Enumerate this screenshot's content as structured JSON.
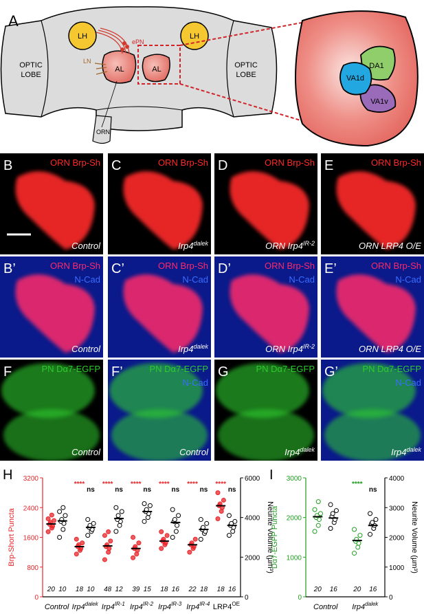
{
  "diagram": {
    "letter": "A",
    "lh": [
      "LH",
      "LH"
    ],
    "optic_lobe": [
      [
        "OPTIC",
        "LOBE"
      ],
      [
        "OPTIC",
        "LOBE"
      ]
    ],
    "al": [
      "AL",
      "AL"
    ],
    "epn": "ePN",
    "ln": "LN",
    "orn": "ORN",
    "glomeruli": [
      "DA1",
      "VA1d",
      "VA1v"
    ]
  },
  "microscopy": [
    {
      "letter": "B",
      "stain": "ORN Brp-Sh",
      "stain_color": "#ff2a2a",
      "genotype": "Control"
    },
    {
      "letter": "C",
      "stain": "ORN Brp-Sh",
      "stain_color": "#ff2a2a",
      "genotype": "Irp4",
      "genotype_sup": "dalek"
    },
    {
      "letter": "D",
      "stain": "ORN Brp-Sh",
      "stain_color": "#ff2a2a",
      "genotype": "ORN Irp4",
      "genotype_sup": "IR-2"
    },
    {
      "letter": "E",
      "stain": "ORN Brp-Sh",
      "stain_color": "#ff2a2a",
      "genotype": "ORN LRP4 O/E"
    },
    {
      "letter": "B’",
      "stain": "ORN Brp-Sh",
      "stain_color": "#ff2a6a",
      "stain2": "N-Cad",
      "stain2_color": "#3a6cff",
      "genotype": "Control"
    },
    {
      "letter": "C’",
      "stain": "ORN Brp-Sh",
      "stain_color": "#ff2a6a",
      "stain2": "N-Cad",
      "stain2_color": "#3a6cff",
      "genotype": "Irp4",
      "genotype_sup": "dalek"
    },
    {
      "letter": "D’",
      "stain": "ORN Brp-Sh",
      "stain_color": "#ff2a6a",
      "stain2": "N-Cad",
      "stain2_color": "#3a6cff",
      "genotype": "ORN Irp4",
      "genotype_sup": "IR-2"
    },
    {
      "letter": "E’",
      "stain": "ORN Brp-Sh",
      "stain_color": "#ff2a6a",
      "stain2": "N-Cad",
      "stain2_color": "#3a6cff",
      "genotype": "ORN LRP4 O/E"
    },
    {
      "letter": "F",
      "stain": "PN Dα7-EGFP",
      "stain_color": "#2ecc2e",
      "genotype": "Control"
    },
    {
      "letter": "F’",
      "stain": "PN Dα7-EGFP",
      "stain_color": "#2ecc2e",
      "stain2": "N-Cad",
      "stain2_color": "#3a6cff",
      "genotype": "Control"
    },
    {
      "letter": "G",
      "stain": "PN Dα7-EGFP",
      "stain_color": "#2ecc2e",
      "genotype": "Irp4",
      "genotype_sup": "dalek"
    },
    {
      "letter": "G’",
      "stain": "PN Dα7-EGFP",
      "stain_color": "#2ecc2e",
      "stain2": "N-Cad",
      "stain2_color": "#3a6cff",
      "genotype": "Irp4",
      "genotype_sup": "dalek"
    }
  ],
  "chart_data": [
    {
      "type": "dot",
      "panel": "H",
      "ylabel": "Brp-Short Puncta",
      "y2label": "Neurite Volume (µm³)",
      "categories": [
        "Control",
        "Irp4",
        "Irp4",
        "Irp4",
        "Irp4",
        "Irp4",
        "LRP4"
      ],
      "category_superscripts": [
        null,
        "dalek",
        "IR-1",
        "IR-2",
        "IR-3",
        "IR-4",
        "OE"
      ],
      "category_italic": [
        true,
        true,
        true,
        true,
        true,
        true,
        false
      ],
      "ylim": [
        0,
        3200
      ],
      "yticks": [
        0,
        800,
        1600,
        2400,
        3200
      ],
      "y2lim": [
        0,
        6000
      ],
      "y2ticks": [
        0,
        2000,
        4000,
        6000
      ],
      "series": [
        {
          "name": "Brp-Short Puncta",
          "color": "#e8262a",
          "filled": true,
          "means": [
            1960,
            1350,
            1370,
            1300,
            1500,
            1400,
            2450
          ],
          "points": [
            [
              1750,
              1850,
              1900,
              1950,
              2000,
              2050,
              2100,
              2200
            ],
            [
              1150,
              1250,
              1300,
              1350,
              1400,
              1450,
              1550
            ],
            [
              1000,
              1200,
              1300,
              1350,
              1400,
              1500,
              1650,
              1750
            ],
            [
              1050,
              1150,
              1250,
              1300,
              1350,
              1450,
              1600
            ],
            [
              1300,
              1400,
              1450,
              1500,
              1550,
              1650,
              1750
            ],
            [
              1200,
              1300,
              1350,
              1400,
              1450,
              1550
            ],
            [
              2100,
              2300,
              2400,
              2450,
              2500,
              2600,
              2800
            ]
          ],
          "n_labels": [
            20,
            18,
            48,
            39,
            18,
            22,
            18
          ],
          "sig_labels": [
            null,
            "****",
            "****",
            "****",
            "****",
            "****",
            "****"
          ]
        },
        {
          "name": "Neurite Volume",
          "color": "#000000",
          "filled": false,
          "axis": "y2",
          "means": [
            3830,
            3500,
            3950,
            4300,
            3750,
            3400,
            3600
          ],
          "points": [
            [
              3000,
              3400,
              3700,
              3800,
              3900,
              4100,
              4300,
              4500
            ],
            [
              3100,
              3300,
              3400,
              3500,
              3600,
              3700,
              3900
            ],
            [
              3300,
              3600,
              3800,
              3900,
              4100,
              4300,
              4500
            ],
            [
              3800,
              4000,
              4200,
              4300,
              4400,
              4600,
              4700
            ],
            [
              3000,
              3300,
              3600,
              3800,
              3900,
              4100,
              4400
            ],
            [
              2900,
              3200,
              3300,
              3400,
              3500,
              3700,
              3900
            ],
            [
              3100,
              3300,
              3500,
              3600,
              3700,
              3800,
              4100
            ]
          ],
          "n_labels": [
            10,
            10,
            12,
            15,
            16,
            18,
            16
          ],
          "sig_labels": [
            null,
            "ns",
            "ns",
            "ns",
            "ns",
            "ns",
            "ns"
          ]
        }
      ]
    },
    {
      "type": "dot",
      "panel": "I",
      "ylabel": "Dα7-EGFP Puncta",
      "y2label": "Neurite Volume (µm³)",
      "categories": [
        "Control",
        "Irp4"
      ],
      "category_superscripts": [
        null,
        "dalek"
      ],
      "category_italic": [
        true,
        true
      ],
      "ylim": [
        0,
        3000
      ],
      "yticks": [
        0,
        1000,
        2000,
        3000
      ],
      "y2lim": [
        0,
        4000
      ],
      "y2ticks": [
        0,
        1000,
        2000,
        3000,
        4000
      ],
      "series": [
        {
          "name": "Dα7-EGFP Puncta",
          "color": "#1e9e1e",
          "filled": false,
          "means": [
            2020,
            1420
          ],
          "points": [
            [
              1650,
              1800,
              1950,
              2000,
              2050,
              2100,
              2200,
              2400
            ],
            [
              1100,
              1250,
              1350,
              1400,
              1450,
              1550,
              1700
            ]
          ],
          "n_labels": [
            20,
            20
          ],
          "sig_labels": [
            null,
            "****"
          ]
        },
        {
          "name": "Neurite Volume",
          "color": "#000000",
          "filled": false,
          "axis": "y2",
          "means": [
            2650,
            2400
          ],
          "points": [
            [
              2300,
              2500,
              2600,
              2700,
              2800,
              2900,
              3100
            ],
            [
              2100,
              2300,
              2400,
              2450,
              2500,
              2600,
              2800
            ]
          ],
          "n_labels": [
            16,
            16
          ],
          "sig_labels": [
            null,
            "ns"
          ]
        }
      ]
    }
  ]
}
